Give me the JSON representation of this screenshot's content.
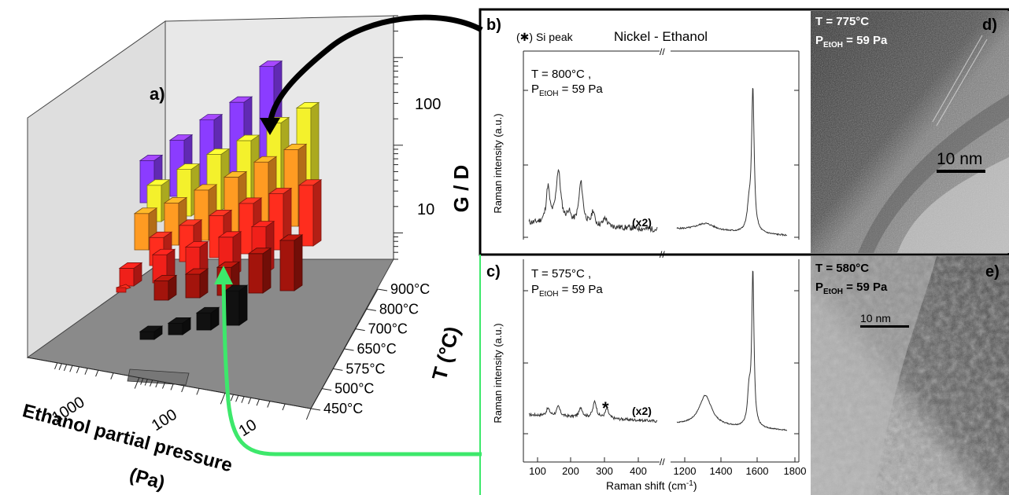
{
  "panel_a": {
    "label": "a)",
    "xlabel_line1": "Ethanol partial pressure",
    "xlabel_line2": "(Pa)",
    "zlabel": "G / D",
    "ylabel": "T (°C)",
    "x_ticks": [
      "1000",
      "100",
      "10"
    ],
    "z_ticks": [
      "100",
      "10"
    ],
    "temperature_labels": [
      "900°C",
      "800°C",
      "700°C",
      "650°C",
      "575°C",
      "500°C",
      "450°C"
    ]
  },
  "panel_b": {
    "label": "b)",
    "legend": "(✱) Si peak",
    "title": "Nickel - Ethanol",
    "condition_line1": "T = 800°C ,",
    "condition_line2": "P",
    "condition_sub": "EtOH",
    "condition_rest": " = 59 Pa",
    "ylabel": "Raman intensity (a.u.)",
    "scale_note": "(x2)"
  },
  "panel_c": {
    "label": "c)",
    "condition_line1": "T = 575°C ,",
    "condition_line2": "P",
    "condition_sub": "EtOH",
    "condition_rest": " = 59 Pa",
    "ylabel": "Raman intensity (a.u.)",
    "scale_note": "(x2)",
    "si_marker": "*",
    "xlabel": "Raman shift (cm",
    "xlabel_sup": "-1",
    "xlabel_end": ")",
    "x_ticks_low": [
      "100",
      "200",
      "300",
      "400"
    ],
    "x_ticks_high": [
      "1200",
      "1400",
      "1600",
      "1800"
    ]
  },
  "panel_d": {
    "label": "d)",
    "line1": "T = 775°C",
    "line2": "P",
    "sub": "EtOH",
    "rest": " = 59 Pa",
    "scale_text": "10 nm"
  },
  "panel_e": {
    "label": "e)",
    "line1": "T = 580°C",
    "line2": "P",
    "sub": "EtOH",
    "rest": " = 59 Pa",
    "scale_text": "10 nm"
  },
  "chart_data": [
    {
      "type": "bar",
      "panel": "a",
      "xlabel": "Ethanol partial pressure (Pa)",
      "ylabel": "T (°C)",
      "zlabel": "G / D",
      "z_scale": "log",
      "z_ticks": [
        10,
        100
      ],
      "temperatures": [
        "900°C",
        "800°C",
        "700°C",
        "650°C",
        "575°C",
        "500°C",
        "450°C"
      ],
      "pressure_ticks": [
        1000,
        100,
        10
      ],
      "bar_colors": {
        "900°C": "#8b3cff",
        "800°C": "#f4f12c",
        "700°C": "#ff9b22",
        "650°C": "#ff2d1e",
        "575°C": "#f0201a",
        "500°C": "#a3140c",
        "450°C": "#111111"
      },
      "series": [
        {
          "name": "900°C",
          "values": [
            4,
            8,
            16,
            28,
            120
          ]
        },
        {
          "name": "800°C",
          "values": [
            3,
            5,
            8,
            12,
            22,
            35
          ]
        },
        {
          "name": "700°C",
          "values": [
            3,
            4,
            6,
            9,
            15,
            22
          ]
        },
        {
          "name": "650°C",
          "values": [
            2,
            3,
            4,
            6,
            8,
            10
          ]
        },
        {
          "name": "575°C",
          "values": [
            1.2,
            2,
            2.5,
            3.5,
            5
          ]
        },
        {
          "name": "500°C",
          "values": [
            1.3,
            1.6,
            2.0,
            3.5,
            6
          ]
        },
        {
          "name": "450°C",
          "values": [
            0.8,
            1.0,
            1.4,
            4
          ]
        }
      ]
    },
    {
      "type": "line",
      "panel": "b",
      "title": "Nickel - Ethanol",
      "xlabel": "Raman shift (cm-1)",
      "ylabel": "Raman intensity (a.u.)",
      "x_breaks": [
        [
          80,
          450
        ],
        [
          1200,
          1800
        ]
      ],
      "peaks_cm1": [
        135,
        165,
        230,
        1350,
        1580,
        1600
      ],
      "relative_intensity": {
        "135": 0.45,
        "165": 0.55,
        "230": 0.45,
        "1350": 0.1,
        "1580": 0.35,
        "1600": 1.0
      }
    },
    {
      "type": "line",
      "panel": "c",
      "xlabel": "Raman shift (cm-1)",
      "ylabel": "Raman intensity (a.u.)",
      "x_breaks": [
        [
          80,
          450
        ],
        [
          1200,
          1800
        ]
      ],
      "peaks_cm1": [
        135,
        165,
        230,
        270,
        305,
        1350,
        1580,
        1600
      ],
      "relative_intensity": {
        "135": 0.1,
        "165": 0.12,
        "230": 0.12,
        "270": 0.2,
        "305": 0.15,
        "1350": 0.35,
        "1580": 0.45,
        "1600": 1.0
      }
    }
  ]
}
